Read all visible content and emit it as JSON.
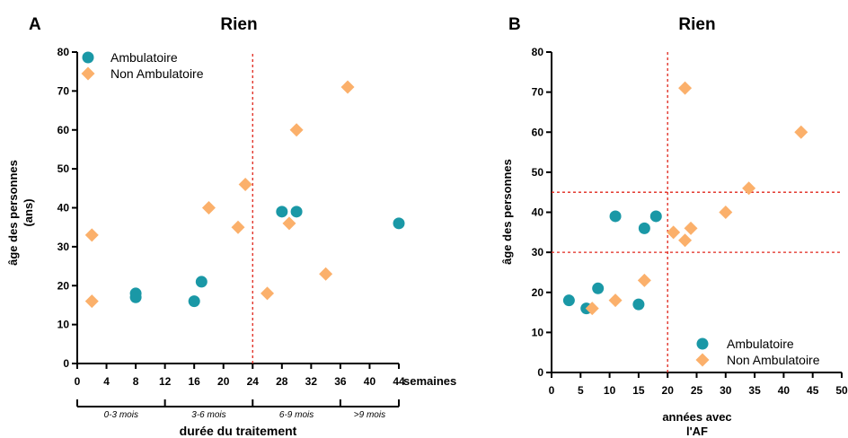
{
  "chart_data": [
    {
      "type": "scatter",
      "panel_label": "A",
      "title": "Rien",
      "xlabel": "durée du traitement",
      "x_unit_label": "semaines",
      "ylabel_lines": [
        "âge des personnes",
        "(ans)"
      ],
      "xlim": [
        0,
        44
      ],
      "ylim": [
        0,
        80
      ],
      "xticks": [
        0,
        4,
        8,
        12,
        16,
        20,
        24,
        28,
        32,
        36,
        40,
        44
      ],
      "yticks": [
        0,
        10,
        20,
        30,
        40,
        50,
        60,
        70,
        80
      ],
      "grid": false,
      "legend_position": "top-left",
      "reference_lines": [
        {
          "axis": "x",
          "value": 24,
          "color": "#e0261b",
          "style": "dashed"
        }
      ],
      "periods": [
        {
          "label": "0-3 mois",
          "from": 0,
          "to": 12
        },
        {
          "label": "3-6 mois",
          "from": 12,
          "to": 24
        },
        {
          "label": "6-9 mois",
          "from": 24,
          "to": 36
        },
        {
          "label": ">9 mois",
          "from": 36,
          "to": 44
        }
      ],
      "series": [
        {
          "name": "Ambulatoire",
          "marker": "circle",
          "color": "#1a98a6",
          "points": [
            [
              8,
              18
            ],
            [
              8,
              17
            ],
            [
              16,
              16
            ],
            [
              17,
              21
            ],
            [
              28,
              39
            ],
            [
              30,
              39
            ],
            [
              44,
              36
            ]
          ]
        },
        {
          "name": "Non Ambulatoire",
          "marker": "diamond",
          "color": "#fbb06b",
          "points": [
            [
              2,
              33
            ],
            [
              2,
              16
            ],
            [
              18,
              40
            ],
            [
              22,
              35
            ],
            [
              23,
              46
            ],
            [
              26,
              18
            ],
            [
              29,
              36
            ],
            [
              30,
              60
            ],
            [
              34,
              23
            ],
            [
              37,
              71
            ]
          ]
        }
      ]
    },
    {
      "type": "scatter",
      "panel_label": "B",
      "title": "Rien",
      "xlabel_lines": [
        "années avec",
        "l'AF"
      ],
      "ylabel": "âge des personnes",
      "xlim": [
        0,
        50
      ],
      "ylim": [
        0,
        80
      ],
      "xticks": [
        0,
        5,
        10,
        15,
        20,
        25,
        30,
        35,
        40,
        45,
        50
      ],
      "yticks": [
        0,
        10,
        20,
        30,
        40,
        50,
        60,
        70,
        80
      ],
      "grid": false,
      "legend_position": "bottom-right",
      "reference_lines": [
        {
          "axis": "x",
          "value": 20,
          "color": "#e0261b",
          "style": "dashed"
        },
        {
          "axis": "y",
          "value": 45,
          "color": "#e0261b",
          "style": "dashed"
        },
        {
          "axis": "y",
          "value": 30,
          "color": "#e0261b",
          "style": "dashed"
        }
      ],
      "series": [
        {
          "name": "Ambulatoire",
          "marker": "circle",
          "color": "#1a98a6",
          "points": [
            [
              3,
              18
            ],
            [
              6,
              16
            ],
            [
              8,
              21
            ],
            [
              11,
              39
            ],
            [
              15,
              17
            ],
            [
              16,
              36
            ],
            [
              18,
              39
            ]
          ]
        },
        {
          "name": "Non Ambulatoire",
          "marker": "diamond",
          "color": "#fbb06b",
          "points": [
            [
              7,
              16
            ],
            [
              11,
              18
            ],
            [
              16,
              23
            ],
            [
              21,
              35
            ],
            [
              23,
              33
            ],
            [
              23,
              71
            ],
            [
              24,
              36
            ],
            [
              30,
              40
            ],
            [
              34,
              46
            ],
            [
              43,
              60
            ]
          ]
        }
      ]
    }
  ]
}
